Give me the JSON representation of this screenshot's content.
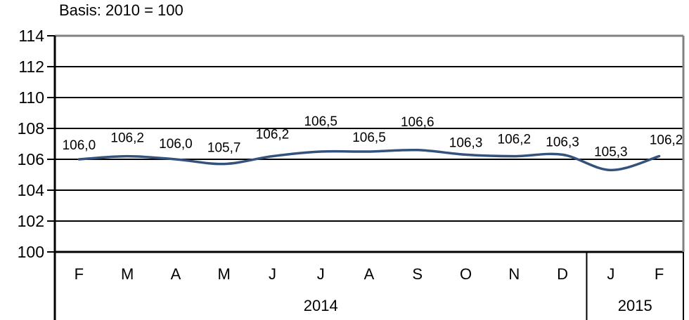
{
  "chart_data": {
    "type": "line",
    "title": "Basis: 2010 = 100",
    "x": [
      "F",
      "M",
      "A",
      "M",
      "J",
      "J",
      "A",
      "S",
      "O",
      "N",
      "D",
      "J",
      "F"
    ],
    "values": [
      106.0,
      106.2,
      106.0,
      105.7,
      106.2,
      106.5,
      106.5,
      106.6,
      106.3,
      106.2,
      106.3,
      105.3,
      106.2
    ],
    "point_labels": [
      "106,0",
      "106,2",
      "106,0",
      "105,7",
      "106,2",
      "106,5",
      "106,5",
      "106,6",
      "106,3",
      "106,2",
      "106,3",
      "105,3",
      "106,2"
    ],
    "groups": [
      {
        "year": "2014",
        "months": 11
      },
      {
        "year": "2015",
        "months": 2
      }
    ],
    "yticks": [
      100,
      102,
      104,
      106,
      108,
      110,
      112,
      114
    ],
    "ytick_labels": [
      "100",
      "102",
      "104",
      "106",
      "108",
      "110",
      "112",
      "114"
    ],
    "ylim": [
      100,
      114
    ],
    "grid": true,
    "smoothed": true,
    "legend": "none",
    "colors": {
      "line": "#33527C",
      "frame_gray": "#808080",
      "axis_black": "#000000"
    },
    "layout_hints": {
      "label_dy": [
        -21,
        -27,
        -23,
        -24,
        -32,
        -44,
        -21,
        -41,
        -18,
        -25,
        -19,
        -27,
        -24
      ],
      "label_dx": [
        0,
        0,
        0,
        0,
        0,
        0,
        0,
        0,
        0,
        0,
        0,
        0,
        10
      ]
    }
  }
}
